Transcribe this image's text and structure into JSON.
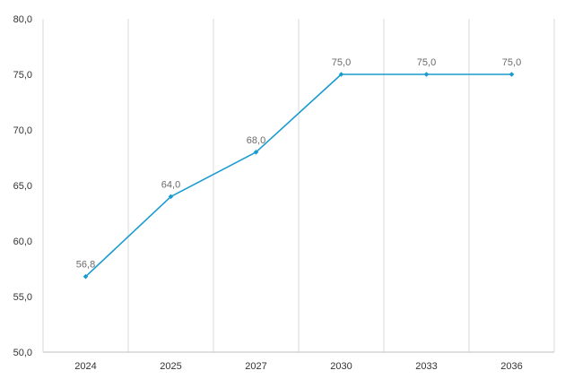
{
  "chart_data": {
    "type": "line",
    "categories": [
      "2024",
      "2025",
      "2027",
      "2030",
      "2033",
      "2036"
    ],
    "series": [
      {
        "values": [
          56.8,
          64.0,
          68.0,
          75.0,
          75.0,
          75.0
        ],
        "labels": [
          "56,8",
          "64,0",
          "68,0",
          "75,0",
          "75,0",
          "75,0"
        ],
        "color": "#1a9bd0"
      }
    ],
    "ylim": [
      50,
      80
    ],
    "yticks": [
      50,
      55,
      60,
      65,
      70,
      75,
      80
    ],
    "ytick_labels": [
      "50,0",
      "55,0",
      "60,0",
      "65,0",
      "70,0",
      "75,0",
      "80,0"
    ],
    "grid": "vertical",
    "legend": "none",
    "colors": {
      "grid": "#d9d9d9",
      "axis": "#bfbfbf"
    }
  }
}
